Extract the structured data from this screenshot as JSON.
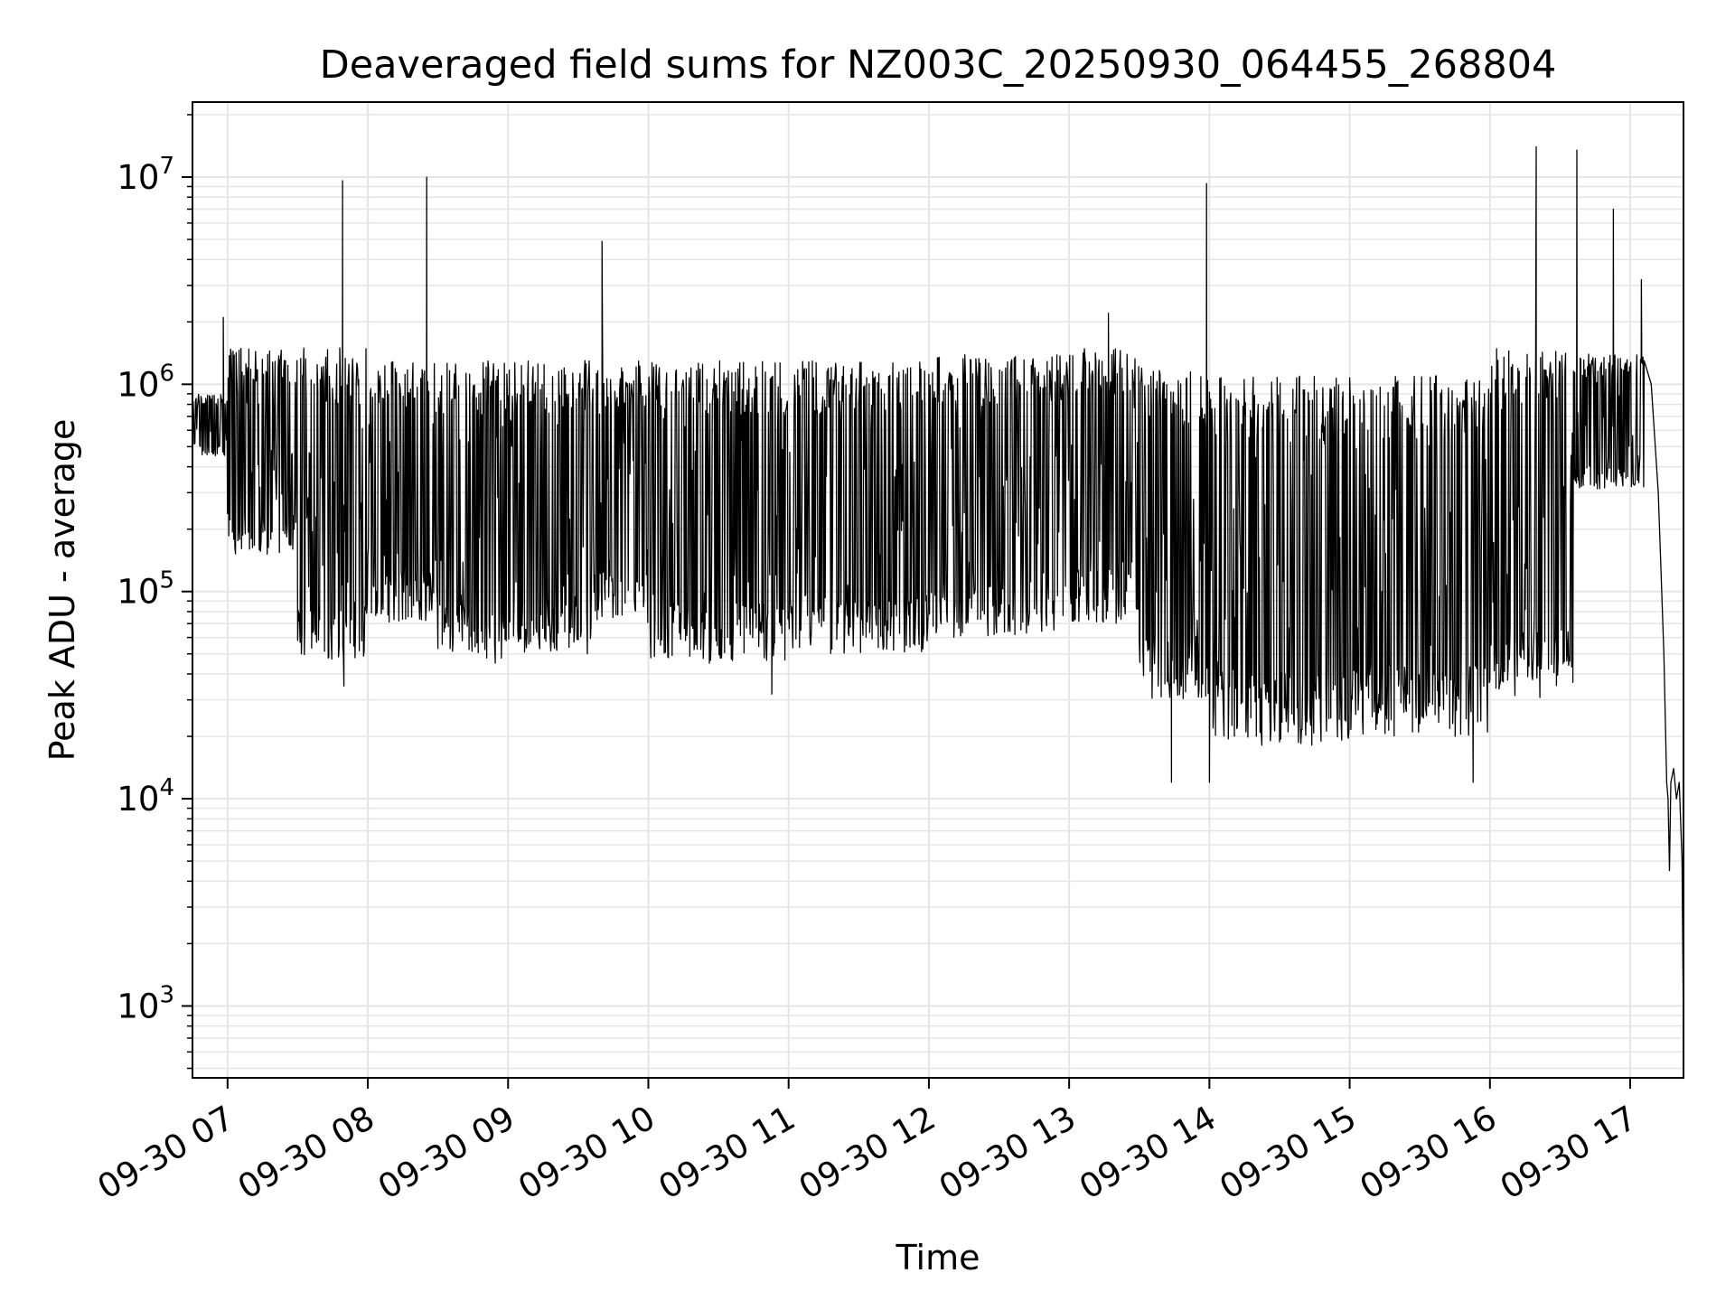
{
  "chart_data": {
    "type": "line",
    "title": "Deaveraged field sums for NZ003C_20250930_064455_268804",
    "xlabel": "Time",
    "ylabel": "Peak ADU - average",
    "yscale": "log",
    "grid": true,
    "legend": "none",
    "line_color": "#000000",
    "grid_color": "#e5e5e5",
    "xlim_hours": [
      6.75,
      17.38
    ],
    "ylim": [
      450,
      23000000
    ],
    "x_ticks": [
      {
        "label": "09-30 07",
        "hour": 7
      },
      {
        "label": "09-30 08",
        "hour": 8
      },
      {
        "label": "09-30 09",
        "hour": 9
      },
      {
        "label": "09-30 10",
        "hour": 10
      },
      {
        "label": "09-30 11",
        "hour": 11
      },
      {
        "label": "09-30 12",
        "hour": 12
      },
      {
        "label": "09-30 13",
        "hour": 13
      },
      {
        "label": "09-30 14",
        "hour": 14
      },
      {
        "label": "09-30 15",
        "hour": 15
      },
      {
        "label": "09-30 16",
        "hour": 16
      },
      {
        "label": "09-30 17",
        "hour": 17
      }
    ],
    "y_ticks": [
      {
        "base": "10",
        "exp": "3",
        "value": 1000
      },
      {
        "base": "10",
        "exp": "4",
        "value": 10000
      },
      {
        "base": "10",
        "exp": "5",
        "value": 100000
      },
      {
        "base": "10",
        "exp": "6",
        "value": 1000000
      },
      {
        "base": "10",
        "exp": "7",
        "value": 10000000
      }
    ],
    "series": [
      {
        "name": "deaveraged field sum",
        "envelope_note": "dense oscillating trace: segments give [start_hour, end_hour, low_value, high_value]",
        "segments": [
          [
            6.75,
            7.0,
            450000,
            900000
          ],
          [
            7.0,
            7.5,
            150000,
            1500000
          ],
          [
            7.5,
            8.0,
            45000,
            1500000
          ],
          [
            8.0,
            8.5,
            70000,
            1300000
          ],
          [
            8.5,
            9.0,
            45000,
            1300000
          ],
          [
            9.0,
            9.6,
            50000,
            1300000
          ],
          [
            9.6,
            10.0,
            70000,
            1300000
          ],
          [
            10.0,
            11.0,
            45000,
            1300000
          ],
          [
            11.0,
            12.0,
            50000,
            1300000
          ],
          [
            12.0,
            13.0,
            60000,
            1400000
          ],
          [
            13.0,
            13.5,
            70000,
            1500000
          ],
          [
            13.5,
            14.0,
            30000,
            1200000
          ],
          [
            14.0,
            15.0,
            18000,
            1100000
          ],
          [
            15.0,
            16.0,
            20000,
            1100000
          ],
          [
            16.0,
            16.6,
            30000,
            1500000
          ],
          [
            16.6,
            17.1,
            300000,
            1400000
          ]
        ],
        "spikes": [
          {
            "hour": 6.97,
            "value": 2100000
          },
          {
            "hour": 7.82,
            "value": 9600000
          },
          {
            "hour": 8.42,
            "value": 10000000
          },
          {
            "hour": 9.67,
            "value": 4900000
          },
          {
            "hour": 13.28,
            "value": 2200000
          },
          {
            "hour": 13.98,
            "value": 9300000
          },
          {
            "hour": 16.33,
            "value": 14000000
          },
          {
            "hour": 16.62,
            "value": 13500000
          },
          {
            "hour": 16.88,
            "value": 7000000
          },
          {
            "hour": 17.08,
            "value": 3200000
          }
        ],
        "dips": [
          {
            "hour": 7.83,
            "value": 35000
          },
          {
            "hour": 10.88,
            "value": 32000
          },
          {
            "hour": 13.73,
            "value": 12000
          },
          {
            "hour": 14.0,
            "value": 12000
          },
          {
            "hour": 15.88,
            "value": 12000
          }
        ],
        "tail": [
          [
            17.1,
            1300000
          ],
          [
            17.15,
            1000000
          ],
          [
            17.2,
            300000
          ],
          [
            17.24,
            50000
          ],
          [
            17.26,
            12000
          ],
          [
            17.27,
            10000
          ],
          [
            17.28,
            4500
          ],
          [
            17.29,
            12000
          ],
          [
            17.31,
            14000
          ],
          [
            17.33,
            10000
          ],
          [
            17.35,
            12000
          ],
          [
            17.37,
            5000
          ],
          [
            17.38,
            700
          ]
        ]
      }
    ]
  }
}
